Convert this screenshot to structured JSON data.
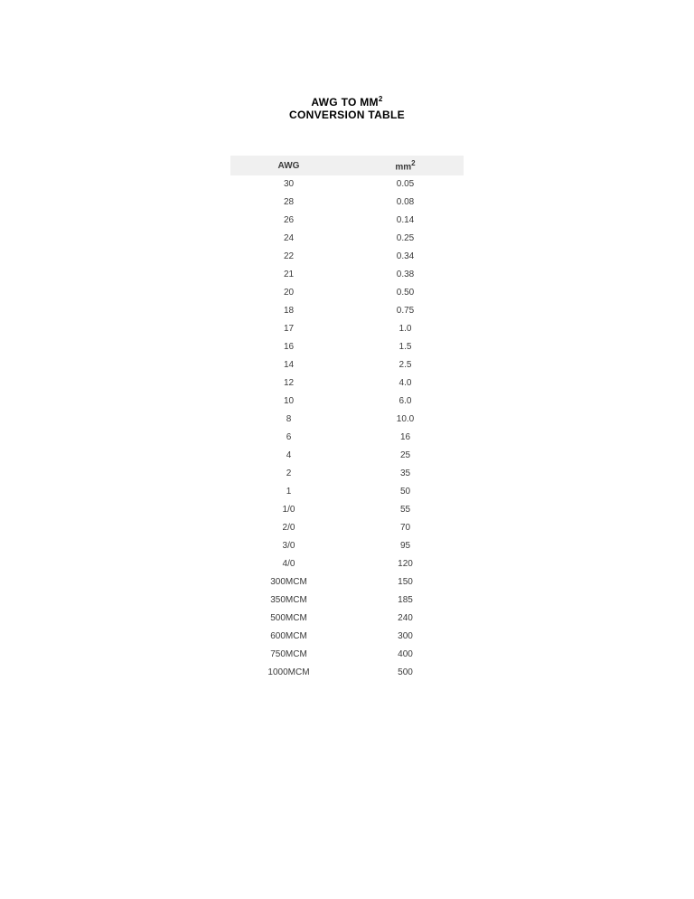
{
  "title": {
    "line1_prefix": "AWG TO MM",
    "line1_sup": "2",
    "line2": "CONVERSION TABLE"
  },
  "table": {
    "type": "table",
    "header": {
      "col1": "AWG",
      "col2_prefix": "mm",
      "col2_sup": "2"
    },
    "rows": [
      {
        "awg": "30",
        "mm2": "0.05"
      },
      {
        "awg": "28",
        "mm2": "0.08"
      },
      {
        "awg": "26",
        "mm2": "0.14"
      },
      {
        "awg": "24",
        "mm2": "0.25"
      },
      {
        "awg": "22",
        "mm2": "0.34"
      },
      {
        "awg": "21",
        "mm2": "0.38"
      },
      {
        "awg": "20",
        "mm2": "0.50"
      },
      {
        "awg": "18",
        "mm2": "0.75"
      },
      {
        "awg": "17",
        "mm2": "1.0"
      },
      {
        "awg": "16",
        "mm2": "1.5"
      },
      {
        "awg": "14",
        "mm2": "2.5"
      },
      {
        "awg": "12",
        "mm2": "4.0"
      },
      {
        "awg": "10",
        "mm2": "6.0"
      },
      {
        "awg": "8",
        "mm2": "10.0"
      },
      {
        "awg": "6",
        "mm2": "16"
      },
      {
        "awg": "4",
        "mm2": "25"
      },
      {
        "awg": "2",
        "mm2": "35"
      },
      {
        "awg": "1",
        "mm2": "50"
      },
      {
        "awg": "1/0",
        "mm2": "55"
      },
      {
        "awg": "2/0",
        "mm2": "70"
      },
      {
        "awg": "3/0",
        "mm2": "95"
      },
      {
        "awg": "4/0",
        "mm2": "120"
      },
      {
        "awg": "300MCM",
        "mm2": "150"
      },
      {
        "awg": "350MCM",
        "mm2": "185"
      },
      {
        "awg": "500MCM",
        "mm2": "240"
      },
      {
        "awg": "600MCM",
        "mm2": "300"
      },
      {
        "awg": "750MCM",
        "mm2": "400"
      },
      {
        "awg": "1000MCM",
        "mm2": "500"
      }
    ],
    "colors": {
      "header_bg": "#f0f0f0",
      "text": "#3a3a3a",
      "background": "#ffffff"
    },
    "font": {
      "header_size": 10,
      "cell_size": 10,
      "title_size": 12
    }
  }
}
